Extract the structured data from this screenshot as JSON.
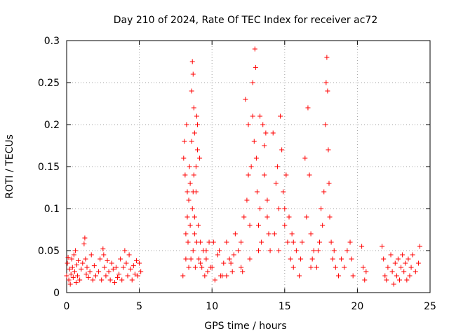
{
  "chart_data": {
    "type": "scatter",
    "title": "Day 210 of 2024, Rate Of TEC Index for receiver ac72",
    "xlabel": "GPS time / hours",
    "ylabel": "ROTI / TECUs",
    "xlim": [
      0,
      25
    ],
    "ylim": [
      0,
      0.3
    ],
    "x_ticks": [
      0,
      5,
      10,
      15,
      20,
      25
    ],
    "y_ticks": [
      0,
      0.05,
      0.1,
      0.15,
      0.2,
      0.25,
      0.3
    ],
    "x_tick_labels": [
      "0",
      "5",
      "10",
      "15",
      "20",
      "25"
    ],
    "y_tick_labels": [
      "0",
      "0.05",
      "0.1",
      "0.15",
      "0.2",
      "0.25",
      "0.3"
    ],
    "grid": true,
    "marker": "plus",
    "color": "#ff0000",
    "series": [
      {
        "points": [
          [
            0.0,
            0.02
          ],
          [
            0.05,
            0.035
          ],
          [
            0.1,
            0.042
          ],
          [
            0.15,
            0.015
          ],
          [
            0.2,
            0.028
          ],
          [
            0.25,
            0.01
          ],
          [
            0.3,
            0.022
          ],
          [
            0.35,
            0.04
          ],
          [
            0.4,
            0.03
          ],
          [
            0.45,
            0.018
          ],
          [
            0.5,
            0.045
          ],
          [
            0.55,
            0.025
          ],
          [
            0.6,
            0.05
          ],
          [
            0.65,
            0.012
          ],
          [
            0.7,
            0.033
          ],
          [
            0.75,
            0.02
          ],
          [
            0.8,
            0.038
          ],
          [
            0.9,
            0.015
          ],
          [
            1.0,
            0.028
          ],
          [
            1.1,
            0.035
          ],
          [
            1.2,
            0.058
          ],
          [
            1.25,
            0.065
          ],
          [
            1.3,
            0.04
          ],
          [
            1.35,
            0.022
          ],
          [
            1.4,
            0.03
          ],
          [
            1.5,
            0.018
          ],
          [
            1.6,
            0.025
          ],
          [
            1.7,
            0.045
          ],
          [
            1.8,
            0.015
          ],
          [
            1.9,
            0.032
          ],
          [
            2.0,
            0.02
          ],
          [
            2.2,
            0.025
          ],
          [
            2.3,
            0.04
          ],
          [
            2.4,
            0.015
          ],
          [
            2.5,
            0.052
          ],
          [
            2.55,
            0.045
          ],
          [
            2.6,
            0.03
          ],
          [
            2.7,
            0.02
          ],
          [
            2.8,
            0.038
          ],
          [
            2.9,
            0.025
          ],
          [
            3.0,
            0.015
          ],
          [
            3.1,
            0.035
          ],
          [
            3.2,
            0.028
          ],
          [
            3.3,
            0.012
          ],
          [
            3.4,
            0.03
          ],
          [
            3.5,
            0.018
          ],
          [
            3.6,
            0.022
          ],
          [
            3.7,
            0.04
          ],
          [
            3.8,
            0.015
          ],
          [
            3.9,
            0.03
          ],
          [
            4.0,
            0.05
          ],
          [
            4.1,
            0.035
          ],
          [
            4.2,
            0.02
          ],
          [
            4.3,
            0.045
          ],
          [
            4.4,
            0.028
          ],
          [
            4.5,
            0.015
          ],
          [
            4.6,
            0.032
          ],
          [
            4.7,
            0.022
          ],
          [
            4.8,
            0.038
          ],
          [
            4.9,
            0.02
          ],
          [
            5.0,
            0.035
          ],
          [
            5.1,
            0.025
          ],
          [
            8.0,
            0.02
          ],
          [
            8.05,
            0.16
          ],
          [
            8.1,
            0.18
          ],
          [
            8.15,
            0.14
          ],
          [
            8.2,
            0.04
          ],
          [
            8.25,
            0.2
          ],
          [
            8.3,
            0.12
          ],
          [
            8.35,
            0.06
          ],
          [
            8.4,
            0.03
          ],
          [
            8.45,
            0.15
          ],
          [
            8.5,
            0.08
          ],
          [
            8.55,
            0.04
          ],
          [
            8.6,
            0.18
          ],
          [
            8.65,
            0.1
          ],
          [
            8.7,
            0.05
          ],
          [
            8.75,
            0.14
          ],
          [
            8.8,
            0.07
          ],
          [
            8.85,
            0.03
          ],
          [
            8.9,
            0.12
          ],
          [
            8.95,
            0.06
          ],
          [
            9.0,
            0.2
          ],
          [
            9.05,
            0.08
          ],
          [
            9.1,
            0.04
          ],
          [
            9.15,
            0.16
          ],
          [
            9.2,
            0.06
          ],
          [
            9.3,
            0.03
          ],
          [
            9.4,
            0.05
          ],
          [
            9.5,
            0.02
          ],
          [
            9.6,
            0.04
          ],
          [
            9.7,
            0.025
          ],
          [
            9.8,
            0.06
          ],
          [
            9.9,
            0.03
          ],
          [
            8.6,
            0.24
          ],
          [
            8.65,
            0.275
          ],
          [
            8.7,
            0.26
          ],
          [
            8.75,
            0.22
          ],
          [
            8.8,
            0.19
          ],
          [
            8.9,
            0.15
          ],
          [
            8.95,
            0.21
          ],
          [
            9.0,
            0.17
          ],
          [
            8.3,
            0.09
          ],
          [
            8.4,
            0.11
          ],
          [
            8.5,
            0.13
          ],
          [
            8.2,
            0.07
          ],
          [
            8.7,
            0.12
          ],
          [
            8.8,
            0.09
          ],
          [
            10.0,
            0.03
          ],
          [
            10.2,
            0.015
          ],
          [
            10.4,
            0.045
          ],
          [
            10.6,
            0.02
          ],
          [
            10.8,
            0.035
          ],
          [
            11.0,
            0.06
          ],
          [
            11.2,
            0.04
          ],
          [
            11.4,
            0.025
          ],
          [
            11.6,
            0.07
          ],
          [
            11.8,
            0.05
          ],
          [
            12.0,
            0.03
          ],
          [
            12.2,
            0.09
          ],
          [
            12.4,
            0.11
          ],
          [
            12.5,
            0.14
          ],
          [
            12.6,
            0.08
          ],
          [
            12.7,
            0.15
          ],
          [
            12.8,
            0.21
          ],
          [
            12.9,
            0.18
          ],
          [
            12.95,
            0.29
          ],
          [
            13.0,
            0.268
          ],
          [
            13.05,
            0.16
          ],
          [
            13.1,
            0.12
          ],
          [
            13.2,
            0.08
          ],
          [
            13.3,
            0.1
          ],
          [
            13.4,
            0.06
          ],
          [
            13.5,
            0.2
          ],
          [
            13.6,
            0.14
          ],
          [
            13.7,
            0.19
          ],
          [
            13.8,
            0.11
          ],
          [
            13.9,
            0.07
          ],
          [
            14.0,
            0.05
          ],
          [
            12.3,
            0.23
          ],
          [
            12.5,
            0.2
          ],
          [
            12.8,
            0.25
          ],
          [
            13.3,
            0.21
          ],
          [
            13.6,
            0.175
          ],
          [
            14.2,
            0.19
          ],
          [
            14.4,
            0.13
          ],
          [
            14.5,
            0.15
          ],
          [
            14.6,
            0.1
          ],
          [
            14.7,
            0.21
          ],
          [
            14.8,
            0.17
          ],
          [
            14.9,
            0.12
          ],
          [
            15.0,
            0.08
          ],
          [
            15.1,
            0.14
          ],
          [
            15.2,
            0.06
          ],
          [
            15.3,
            0.09
          ],
          [
            15.4,
            0.04
          ],
          [
            15.5,
            0.07
          ],
          [
            15.6,
            0.03
          ],
          [
            15.8,
            0.05
          ],
          [
            16.0,
            0.02
          ],
          [
            16.2,
            0.06
          ],
          [
            16.4,
            0.16
          ],
          [
            16.5,
            0.09
          ],
          [
            16.6,
            0.22
          ],
          [
            16.7,
            0.14
          ],
          [
            16.8,
            0.07
          ],
          [
            16.9,
            0.04
          ],
          [
            17.0,
            0.05
          ],
          [
            17.2,
            0.03
          ],
          [
            17.4,
            0.06
          ],
          [
            17.5,
            0.1
          ],
          [
            17.6,
            0.08
          ],
          [
            17.7,
            0.12
          ],
          [
            17.8,
            0.2
          ],
          [
            17.85,
            0.25
          ],
          [
            17.9,
            0.28
          ],
          [
            17.95,
            0.24
          ],
          [
            18.0,
            0.17
          ],
          [
            18.05,
            0.13
          ],
          [
            18.1,
            0.09
          ],
          [
            18.2,
            0.06
          ],
          [
            18.3,
            0.04
          ],
          [
            18.4,
            0.05
          ],
          [
            18.5,
            0.03
          ],
          [
            18.7,
            0.02
          ],
          [
            18.9,
            0.04
          ],
          [
            19.1,
            0.03
          ],
          [
            19.3,
            0.05
          ],
          [
            19.5,
            0.06
          ],
          [
            19.6,
            0.04
          ],
          [
            19.7,
            0.02
          ],
          [
            10.5,
            0.05
          ],
          [
            11.0,
            0.02
          ],
          [
            11.5,
            0.045
          ],
          [
            12.0,
            0.06
          ],
          [
            12.6,
            0.04
          ],
          [
            13.2,
            0.05
          ],
          [
            13.8,
            0.09
          ],
          [
            14.3,
            0.07
          ],
          [
            14.6,
            0.05
          ],
          [
            15.0,
            0.1
          ],
          [
            15.6,
            0.06
          ],
          [
            16.1,
            0.04
          ],
          [
            16.8,
            0.03
          ],
          [
            17.3,
            0.05
          ],
          [
            9.2,
            0.035
          ],
          [
            9.6,
            0.05
          ],
          [
            10.1,
            0.06
          ],
          [
            10.7,
            0.02
          ],
          [
            11.3,
            0.035
          ],
          [
            12.1,
            0.025
          ],
          [
            20.3,
            0.055
          ],
          [
            20.4,
            0.03
          ],
          [
            20.5,
            0.015
          ],
          [
            20.6,
            0.025
          ],
          [
            21.7,
            0.055
          ],
          [
            21.8,
            0.04
          ],
          [
            21.9,
            0.02
          ],
          [
            22.0,
            0.015
          ],
          [
            22.1,
            0.03
          ],
          [
            22.3,
            0.045
          ],
          [
            22.4,
            0.025
          ],
          [
            22.5,
            0.01
          ],
          [
            22.6,
            0.035
          ],
          [
            22.7,
            0.02
          ],
          [
            22.8,
            0.04
          ],
          [
            22.9,
            0.015
          ],
          [
            23.0,
            0.03
          ],
          [
            23.1,
            0.045
          ],
          [
            23.2,
            0.025
          ],
          [
            23.3,
            0.035
          ],
          [
            23.4,
            0.015
          ],
          [
            23.5,
            0.04
          ],
          [
            23.6,
            0.02
          ],
          [
            23.7,
            0.03
          ],
          [
            23.8,
            0.045
          ],
          [
            24.0,
            0.025
          ],
          [
            24.2,
            0.035
          ],
          [
            24.3,
            0.055
          ]
        ]
      }
    ]
  }
}
